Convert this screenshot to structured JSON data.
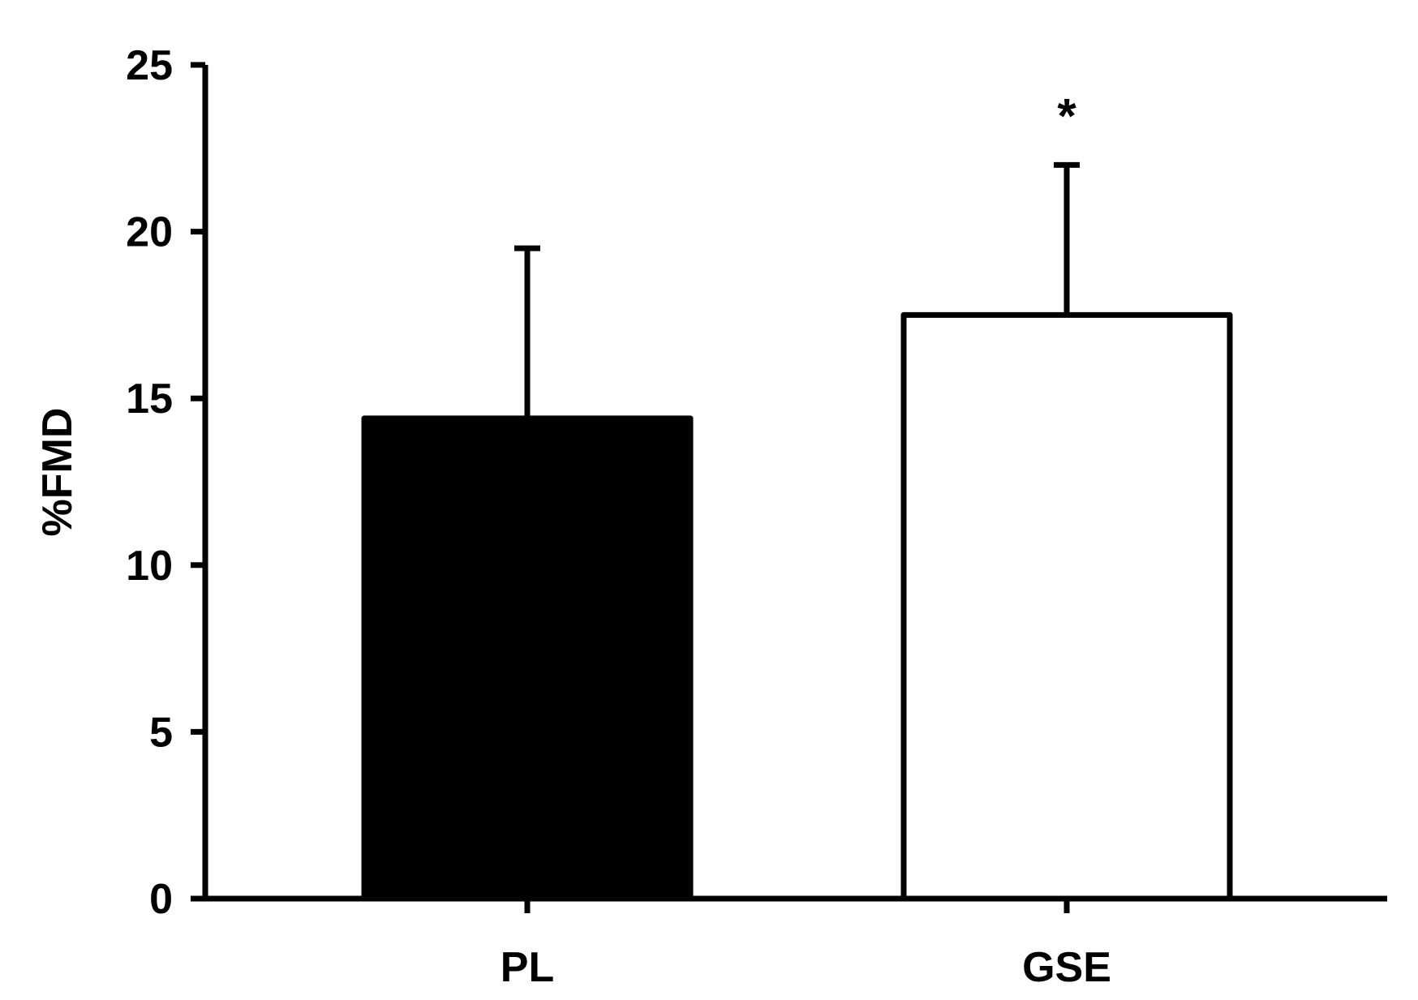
{
  "chart_data": {
    "type": "bar",
    "title": "",
    "xlabel": "",
    "ylabel": "%FMD",
    "ylim": [
      0,
      25
    ],
    "yticks": [
      0,
      5,
      10,
      15,
      20,
      25
    ],
    "categories": [
      "PL",
      "GSE"
    ],
    "values": [
      14.4,
      17.5
    ],
    "error_upper": [
      19.5,
      22.0
    ],
    "bar_colors": [
      "#000000",
      "#ffffff"
    ],
    "annotations": [
      {
        "category": "GSE",
        "text": "*"
      }
    ],
    "grid": false,
    "legend": "none"
  }
}
